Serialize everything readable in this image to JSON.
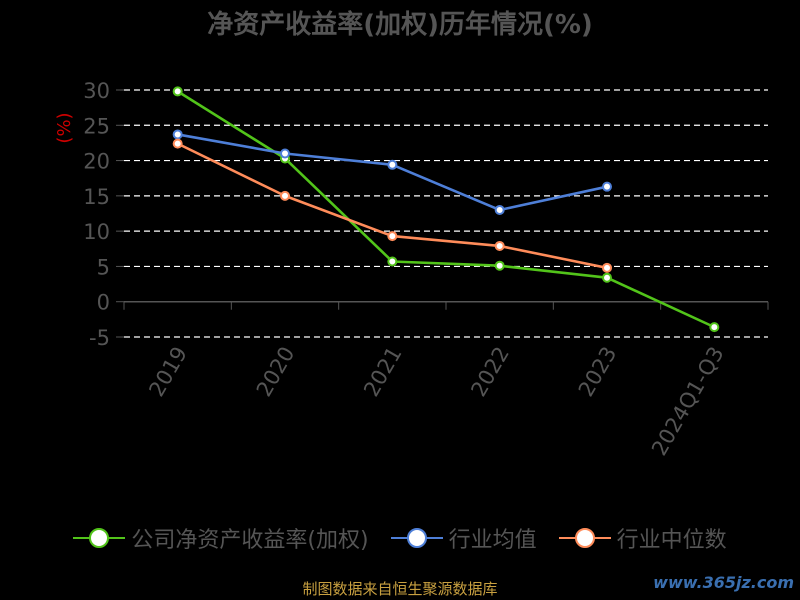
{
  "chart_data": {
    "type": "line",
    "title": "净资产收益率(加权)历年情况(%)",
    "ylabel": "(%)",
    "categories": [
      "2019",
      "2020",
      "2021",
      "2022",
      "2023",
      "2024Q1-Q3"
    ],
    "ylim": [
      -5,
      30
    ],
    "yticks": [
      30,
      25,
      20,
      15,
      10,
      5,
      0,
      -5
    ],
    "grid": true,
    "legend_position": "bottom",
    "series": [
      {
        "name": "公司净资产收益率(加权)",
        "color": "#52c41a",
        "values": [
          29.8,
          20.3,
          5.7,
          5.1,
          3.4,
          -3.6
        ]
      },
      {
        "name": "行业均值",
        "color": "#4e7fd8",
        "values": [
          23.7,
          21.0,
          19.4,
          13.0,
          16.3,
          null
        ]
      },
      {
        "name": "行业中位数",
        "color": "#ff8c5a",
        "values": [
          22.4,
          15.0,
          9.3,
          7.9,
          4.8,
          null
        ]
      }
    ]
  },
  "footer": "制图数据来自恒生聚源数据库",
  "watermark": "www.365jz.com"
}
